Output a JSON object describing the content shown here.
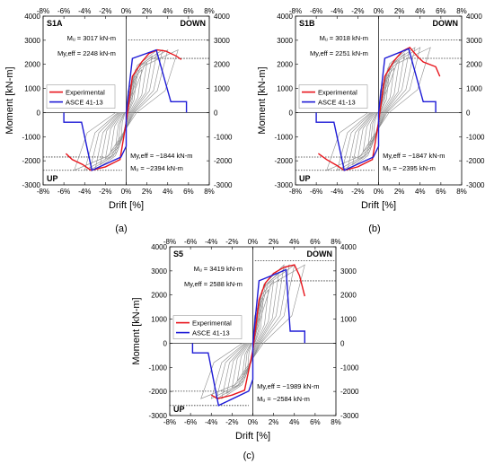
{
  "chart_data": [
    {
      "type": "line",
      "panel_label": "S1A",
      "caption": "(a)",
      "xlabel": "Drift [%]",
      "ylabel": "Moment [kN-m]",
      "xlim": [
        -8,
        8
      ],
      "ylim": [
        -3000,
        4000
      ],
      "x_ticks": [
        "-8%",
        "-6%",
        "-4%",
        "-2%",
        "0%",
        "2%",
        "4%",
        "6%",
        "8%"
      ],
      "y_ticks": [
        "4000",
        "3000",
        "2000",
        "1000",
        "0",
        "-1000",
        "-2000",
        "-3000"
      ],
      "grid": false,
      "legend_position": "center-left",
      "corner_labels": {
        "top_right": "DOWN",
        "bottom_left": "UP"
      },
      "annotations": {
        "mu_pos": "Mᵤ = 3017 kN-m",
        "my_pos": "My,eff = 2248 kN-m",
        "my_neg": "My,eff = −1844 kN-m",
        "mu_neg": "Mᵤ = −2394 kN-m"
      },
      "ref_lines": {
        "mu_pos": 3017,
        "my_pos": 2248,
        "my_neg": -1844,
        "mu_neg": -2394
      },
      "series": [
        {
          "name": "Experimental",
          "color": "#e8141b",
          "x": [
            -5.8,
            -5.2,
            -4.2,
            -3.4,
            -2.0,
            -0.6,
            0,
            0.6,
            1.5,
            2.2,
            3.0,
            3.8,
            4.8,
            5.3
          ],
          "y": [
            -1700,
            -1950,
            -2150,
            -2394,
            -2250,
            -1950,
            -400,
            1500,
            2100,
            2450,
            2600,
            2550,
            2350,
            2200
          ]
        },
        {
          "name": "ASCE 41-13",
          "color": "#1d1ad6",
          "x": [
            -6.0,
            -6.0,
            -4.3,
            -3.3,
            -0.5,
            0,
            0,
            0.6,
            2.9,
            4.3,
            4.3,
            5.8,
            5.8
          ],
          "y": [
            0,
            -400,
            -400,
            -2394,
            -1844,
            -1400,
            0,
            2248,
            2600,
            450,
            450,
            450,
            0
          ]
        }
      ],
      "hysteresis_color": "#8c8c8c"
    },
    {
      "type": "line",
      "panel_label": "S1B",
      "caption": "(b)",
      "xlabel": "Drift [%]",
      "ylabel": "Moment [kN-m]",
      "xlim": [
        -8,
        8
      ],
      "ylim": [
        -3000,
        4000
      ],
      "x_ticks": [
        "-8%",
        "-6%",
        "-4%",
        "-2%",
        "0%",
        "2%",
        "4%",
        "6%",
        "8%"
      ],
      "y_ticks": [
        "4000",
        "3000",
        "2000",
        "1000",
        "0",
        "-1000",
        "-2000",
        "-3000"
      ],
      "grid": false,
      "legend_position": "center-left",
      "corner_labels": {
        "top_right": "DOWN",
        "bottom_left": "UP"
      },
      "annotations": {
        "mu_pos": "Mᵤ = 3018 kN-m",
        "my_pos": "My,eff = 2251 kN-m",
        "my_neg": "My,eff = −1847 kN-m",
        "mu_neg": "Mᵤ = −2395 kN-m"
      },
      "ref_lines": {
        "mu_pos": 3018,
        "my_pos": 2251,
        "my_neg": -1847,
        "mu_neg": -2395
      },
      "series": [
        {
          "name": "Experimental",
          "color": "#e8141b",
          "x": [
            -5.8,
            -5.0,
            -4.0,
            -3.3,
            -2.0,
            -0.6,
            0,
            0.6,
            1.5,
            2.3,
            3.0,
            3.8,
            4.3,
            5.5,
            5.9
          ],
          "y": [
            -1700,
            -1950,
            -2200,
            -2395,
            -2250,
            -1950,
            -400,
            1500,
            2150,
            2550,
            2700,
            2300,
            2100,
            1900,
            1500
          ]
        },
        {
          "name": "ASCE 41-13",
          "color": "#1d1ad6",
          "x": [
            -6.0,
            -6.0,
            -4.3,
            -3.3,
            -0.5,
            0,
            0,
            0.6,
            2.9,
            4.3,
            4.3,
            5.5,
            5.5
          ],
          "y": [
            0,
            -400,
            -400,
            -2395,
            -1847,
            -1400,
            0,
            2251,
            2650,
            450,
            450,
            450,
            0
          ]
        }
      ],
      "hysteresis_color": "#8c8c8c"
    },
    {
      "type": "line",
      "panel_label": "S5",
      "caption": "(c)",
      "xlabel": "Drift [%]",
      "ylabel": "Moment [kN-m]",
      "xlim": [
        -8,
        8
      ],
      "ylim": [
        -3000,
        4000
      ],
      "x_ticks": [
        "-8%",
        "-6%",
        "-4%",
        "-2%",
        "0%",
        "2%",
        "4%",
        "6%",
        "8%"
      ],
      "y_ticks": [
        "4000",
        "3000",
        "2000",
        "1000",
        "0",
        "-1000",
        "-2000",
        "-3000"
      ],
      "grid": false,
      "legend_position": "center-left",
      "corner_labels": {
        "top_right": "DOWN",
        "bottom_left": "UP"
      },
      "annotations": {
        "mu_pos": "Mᵤ = 3419 kN-m",
        "my_pos": "My,eff = 2588 kN-m",
        "my_neg": "My,eff = −1989 kN-m",
        "mu_neg": "Mᵤ = −2584 kN-m"
      },
      "ref_lines": {
        "mu_pos": 3419,
        "my_pos": 2588,
        "my_neg": -1989,
        "mu_neg": -2584
      },
      "series": [
        {
          "name": "Experimental",
          "color": "#e8141b",
          "x": [
            -4.0,
            -3.4,
            -2.0,
            -0.8,
            0,
            0.6,
            1.2,
            2.0,
            3.0,
            4.0,
            4.5,
            5.0
          ],
          "y": [
            -2150,
            -2300,
            -2150,
            -1950,
            -300,
            1800,
            2500,
            2900,
            3150,
            3250,
            2800,
            1950
          ]
        },
        {
          "name": "ASCE 41-13",
          "color": "#1d1ad6",
          "x": [
            -5.8,
            -5.8,
            -4.3,
            -3.3,
            -0.4,
            0,
            0,
            0.6,
            3.2,
            3.6,
            3.6,
            5.0,
            5.0
          ],
          "y": [
            0,
            -400,
            -400,
            -2584,
            -1989,
            -1500,
            0,
            2588,
            3050,
            500,
            500,
            500,
            0
          ]
        }
      ],
      "hysteresis_color": "#8c8c8c"
    }
  ]
}
